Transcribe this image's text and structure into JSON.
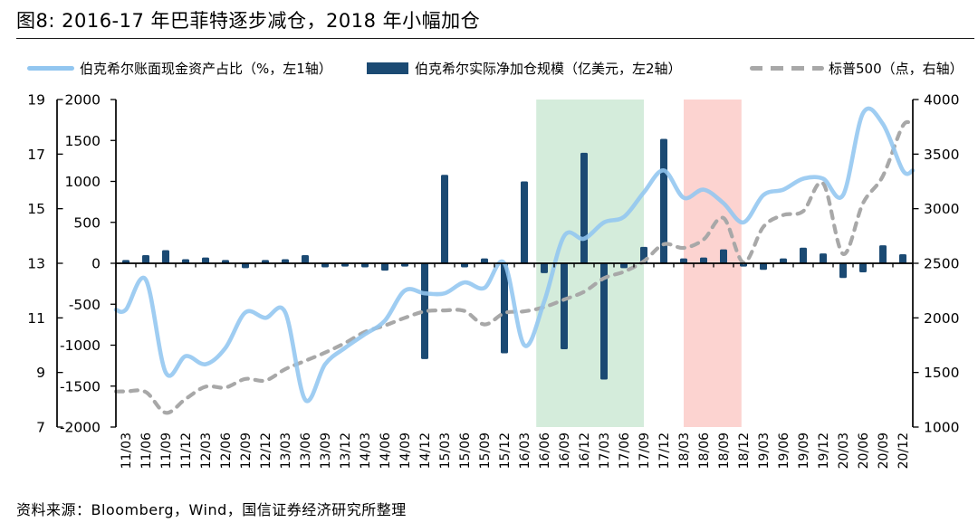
{
  "header": {
    "title": "图8: 2016-17 年巴菲特逐步减仓，2018 年小幅加仓"
  },
  "legend": [
    {
      "label": "伯克希尔账面现金资产占比（%，左1轴）",
      "type": "line",
      "color": "#92c6f0"
    },
    {
      "label": "伯克希尔实际净加仓规模（亿美元，左2轴）",
      "type": "bar",
      "color": "#1b4a73"
    },
    {
      "label": "标普500（点，右轴）",
      "type": "dashed-line",
      "color": "#a8a8a8"
    }
  ],
  "footer": {
    "source": "资料来源：Bloomberg，Wind，国信证券经济研究所整理"
  },
  "chart_data": {
    "type": "combo",
    "categories": [
      "11/03",
      "11/06",
      "11/09",
      "11/12",
      "12/03",
      "12/06",
      "12/09",
      "12/12",
      "13/03",
      "13/06",
      "13/09",
      "13/12",
      "14/03",
      "14/06",
      "14/09",
      "14/12",
      "15/03",
      "15/06",
      "15/09",
      "15/12",
      "16/03",
      "16/06",
      "16/09",
      "16/12",
      "17/03",
      "17/06",
      "17/09",
      "17/12",
      "18/03",
      "18/06",
      "18/09",
      "18/12",
      "19/03",
      "19/06",
      "19/09",
      "19/12",
      "20/03",
      "20/06",
      "20/09",
      "20/12"
    ],
    "series": [
      {
        "name": "伯克希尔账面现金资产占比",
        "type": "line",
        "axis": "left1",
        "unit": "%",
        "color": "#92c6f0",
        "values": [
          11.3,
          12.4,
          9.0,
          9.6,
          9.3,
          9.9,
          11.2,
          11.0,
          11.2,
          8.0,
          9.3,
          9.9,
          10.4,
          10.9,
          12.0,
          11.9,
          11.9,
          12.3,
          12.1,
          13.0,
          10.0,
          11.6,
          14.0,
          13.9,
          14.5,
          14.7,
          15.6,
          16.4,
          15.4,
          15.7,
          15.2,
          14.5,
          15.5,
          15.7,
          16.1,
          16.1,
          15.5,
          18.5,
          18.1,
          16.4
        ]
      },
      {
        "name": "伯克希尔实际净加仓规模",
        "type": "bar",
        "axis": "left2",
        "unit": "亿美元",
        "color": "#1b4a73",
        "values": [
          40,
          100,
          160,
          50,
          70,
          40,
          -60,
          40,
          50,
          100,
          -50,
          -40,
          -50,
          -90,
          -40,
          -1170,
          1080,
          -50,
          60,
          -1100,
          1000,
          -120,
          -1050,
          1350,
          -1420,
          -60,
          200,
          1520,
          60,
          70,
          170,
          -40,
          -80,
          60,
          190,
          120,
          -180,
          -110,
          220,
          110
        ]
      },
      {
        "name": "标普500",
        "type": "line",
        "style": "dashed",
        "axis": "right",
        "unit": "点",
        "color": "#a8a8a8",
        "values": [
          1326,
          1321,
          1131,
          1258,
          1370,
          1362,
          1441,
          1426,
          1530,
          1606,
          1682,
          1770,
          1872,
          1930,
          2000,
          2059,
          2068,
          2063,
          1940,
          2044,
          2060,
          2099,
          2168,
          2239,
          2363,
          2423,
          2519,
          2674,
          2641,
          2718,
          2914,
          2507,
          2834,
          2942,
          2977,
          3231,
          2585,
          3050,
          3300,
          3760
        ]
      }
    ],
    "axes": {
      "left1": {
        "min": 7,
        "max": 19,
        "ticks": [
          19,
          17,
          15,
          13,
          11,
          9,
          7
        ]
      },
      "left2": {
        "min": -2000,
        "max": 2000,
        "ticks": [
          2000,
          1500,
          1000,
          500,
          0,
          -500,
          -1000,
          -1500,
          -2000
        ]
      },
      "right": {
        "min": 1000,
        "max": 4000,
        "ticks": [
          4000,
          3500,
          3000,
          2500,
          2000,
          1500,
          1000
        ]
      }
    },
    "highlight_bands": [
      {
        "start": 21.1,
        "end": 26.5,
        "color": "#d4ecdb"
      },
      {
        "start": 28.5,
        "end": 31.4,
        "color": "#fcd3d0"
      }
    ],
    "legend_position": "top",
    "grid": false
  }
}
